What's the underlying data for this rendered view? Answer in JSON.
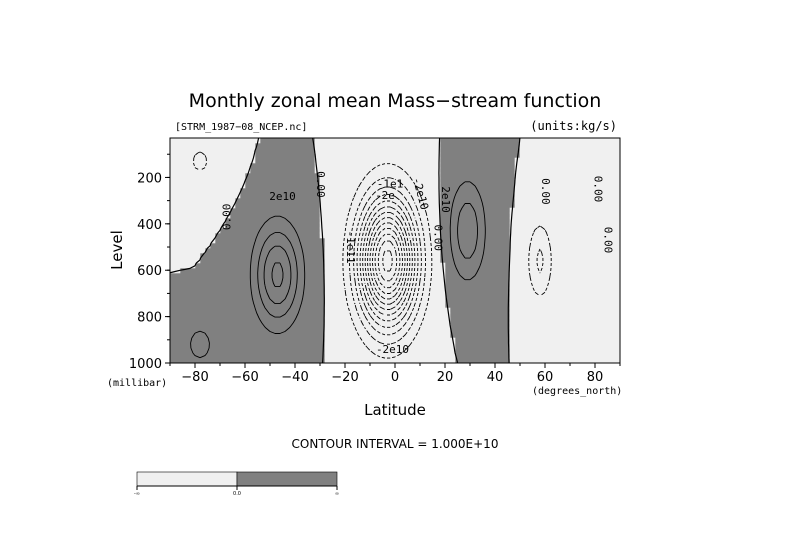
{
  "chart_data": {
    "type": "contour",
    "title": "Monthly zonal mean Mass−stream function",
    "file_label": "[STRM_1987−08_NCEP.nc]",
    "units_label": "(units:kg/s)",
    "xlabel": "Latitude",
    "xunit": "(degrees_north)",
    "ylabel": "Level",
    "yunit": "(millibar)",
    "xlim": [
      -90,
      90
    ],
    "ylim": [
      1000,
      30
    ],
    "x_ticks": [
      -80,
      -60,
      -40,
      -20,
      0,
      20,
      40,
      60,
      80
    ],
    "x_tick_labels": [
      "−80",
      "−60",
      "−40",
      "−20",
      "0",
      "20",
      "40",
      "60",
      "80"
    ],
    "y_ticks": [
      200,
      400,
      600,
      800,
      1000
    ],
    "y_tick_labels": [
      "200",
      "400",
      "600",
      "800",
      "1000"
    ],
    "contour_interval_text": "CONTOUR INTERVAL = 1.000E+10",
    "contour_interval": 10000000000,
    "shading": {
      "positive_color": "#808080",
      "negative_color": "#f0f0f0"
    },
    "colorbar": {
      "labels": [
        "-∞",
        "0.0",
        "∞"
      ],
      "colors": [
        "#f0f0f0",
        "#808080"
      ]
    },
    "contour_labels": [
      {
        "text": "0.00",
        "lat": -67,
        "p": 370,
        "rotate": -90
      },
      {
        "text": "2e10",
        "lat": -45,
        "p": 285,
        "rotate": 0
      },
      {
        "text": "0.00",
        "lat": -30,
        "p": 230,
        "rotate": 90
      },
      {
        "text": "-1e11",
        "lat": -18,
        "p": 500,
        "rotate": 90
      },
      {
        "text": "-1e1",
        "lat": -2,
        "p": 230,
        "rotate": 0
      },
      {
        "text": "-2e",
        "lat": -4,
        "p": 280,
        "rotate": 0
      },
      {
        "text": "-2e10",
        "lat": 10,
        "p": 270,
        "rotate": 75
      },
      {
        "text": "0.00",
        "lat": 17,
        "p": 460,
        "rotate": 90
      },
      {
        "text": "2e10",
        "lat": 20,
        "p": 295,
        "rotate": 90
      },
      {
        "text": "-2e10",
        "lat": -1,
        "p": 945,
        "rotate": 0
      },
      {
        "text": "0.00",
        "lat": 60,
        "p": 260,
        "rotate": 90
      },
      {
        "text": "0.00",
        "lat": 81,
        "p": 250,
        "rotate": 90
      },
      {
        "text": "0.00",
        "lat": 85,
        "p": 470,
        "rotate": 90
      }
    ]
  }
}
